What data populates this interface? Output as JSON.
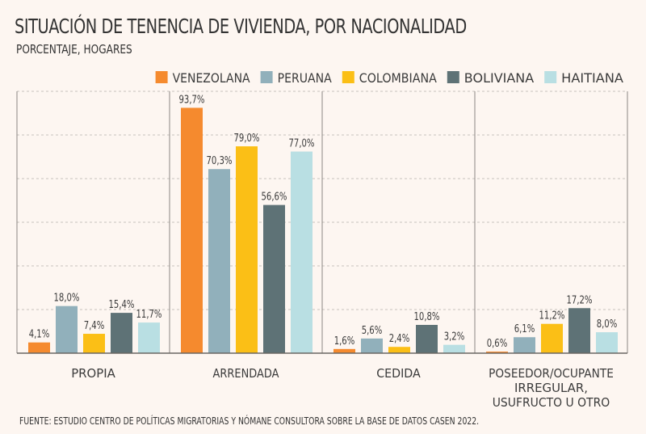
{
  "chart_data": {
    "type": "bar",
    "title": "SITUACIÓN DE TENENCIA DE VIVIENDA, POR NACIONALIDAD",
    "subtitle": "PORCENTAJE, HOGARES",
    "source": "FUENTE: ESTUDIO CENTRO DE POLÍTICAS MIGRATORIAS Y NÓMANE CONSULTORA SOBRE LA BASE DE DATOS CASEN 2022.",
    "categories": [
      [
        "PROPIA"
      ],
      [
        "ARRENDADA"
      ],
      [
        "CEDIDA"
      ],
      [
        "POSEEDOR/OCUPANTE",
        "IRREGULAR,",
        "USUFRUCTO U OTRO"
      ]
    ],
    "series": [
      {
        "name": "VENEZOLANA",
        "color": "#f58a2e",
        "values": [
          4.1,
          93.7,
          1.6,
          0.6
        ]
      },
      {
        "name": "PERUANA",
        "color": "#91b0bb",
        "values": [
          18.0,
          70.3,
          5.6,
          6.1
        ]
      },
      {
        "name": "COLOMBIANA",
        "color": "#fbbf16",
        "values": [
          7.4,
          79.0,
          2.4,
          11.2
        ]
      },
      {
        "name": "BOLIVIANA",
        "color": "#5e7276",
        "values": [
          15.4,
          56.6,
          10.8,
          17.2
        ]
      },
      {
        "name": "HAITIANA",
        "color": "#b9dfe3",
        "values": [
          11.7,
          77.0,
          3.2,
          8.0
        ]
      }
    ],
    "ylim": [
      0,
      100
    ],
    "grid": true,
    "legend": "top-right",
    "xlabel": "",
    "ylabel": ""
  }
}
